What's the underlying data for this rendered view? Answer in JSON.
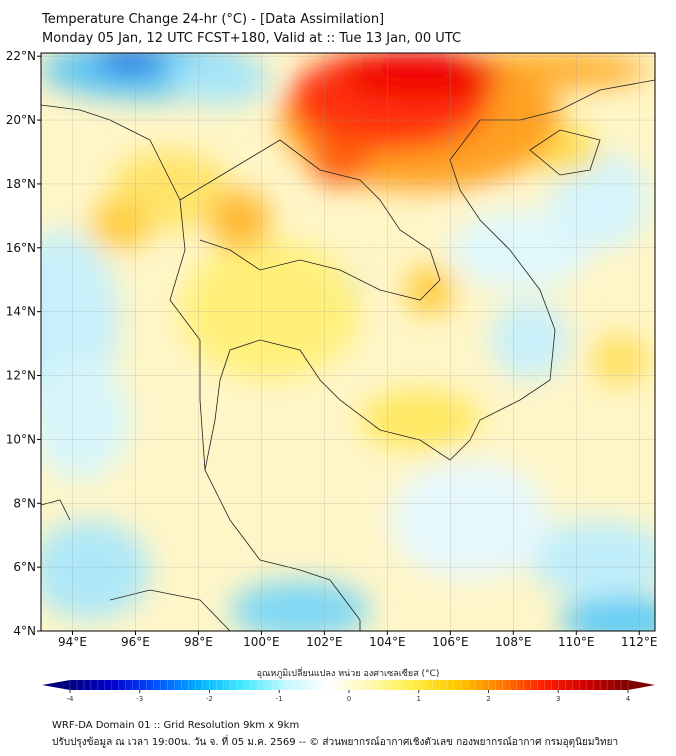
{
  "header": {
    "title": "Temperature Change 24-hr (°C) - [Data Assimilation]",
    "subtitle": "Monday 05 Jan, 12 UTC FCST+180, Valid at :: Tue 13 Jan, 00 UTC"
  },
  "map": {
    "lat_ticks": [
      "4°N",
      "6°N",
      "8°N",
      "10°N",
      "12°N",
      "14°N",
      "16°N",
      "18°N",
      "20°N",
      "22°N"
    ],
    "lat_values": [
      4,
      6,
      8,
      10,
      12,
      14,
      16,
      18,
      20,
      22
    ],
    "lon_ticks": [
      "94°E",
      "96°E",
      "98°E",
      "100°E",
      "102°E",
      "104°E",
      "106°E",
      "108°E",
      "110°E",
      "112°E"
    ],
    "lon_values": [
      94,
      96,
      98,
      100,
      102,
      104,
      106,
      108,
      110,
      112
    ],
    "lat_range": [
      4,
      22.1
    ],
    "lon_range": [
      93,
      112.5
    ]
  },
  "colorbar": {
    "label": "อุณหภูมิเปลี่ยนแปลง หน่วย องศาเซลเซียส (°C)",
    "ticks": [
      "-4",
      "-3",
      "-2",
      "-1",
      "0",
      "1",
      "2",
      "3",
      "4"
    ],
    "range": [
      -4,
      4
    ],
    "colors": [
      "#00007f",
      "#0000d0",
      "#0050ff",
      "#00b0ff",
      "#40e8ff",
      "#c0f8ff",
      "#ffffff",
      "#fff8b0",
      "#ffee40",
      "#ffc800",
      "#ff8000",
      "#ff2000",
      "#d00000",
      "#7f0000"
    ]
  },
  "footer": {
    "line1": "WRF-DA Domain 01 :: Grid Resolution 9km x 9km",
    "line2": "ปรับปรุงข้อมูล ณ เวลา 19:00น. วัน จ. ที่ 05 ม.ค. 2569 -- © ส่วนพยากรณ์อากาศเชิงตัวเลข กองพยากรณ์อากาศ กรมอุตุนิยมวิทยา"
  }
}
